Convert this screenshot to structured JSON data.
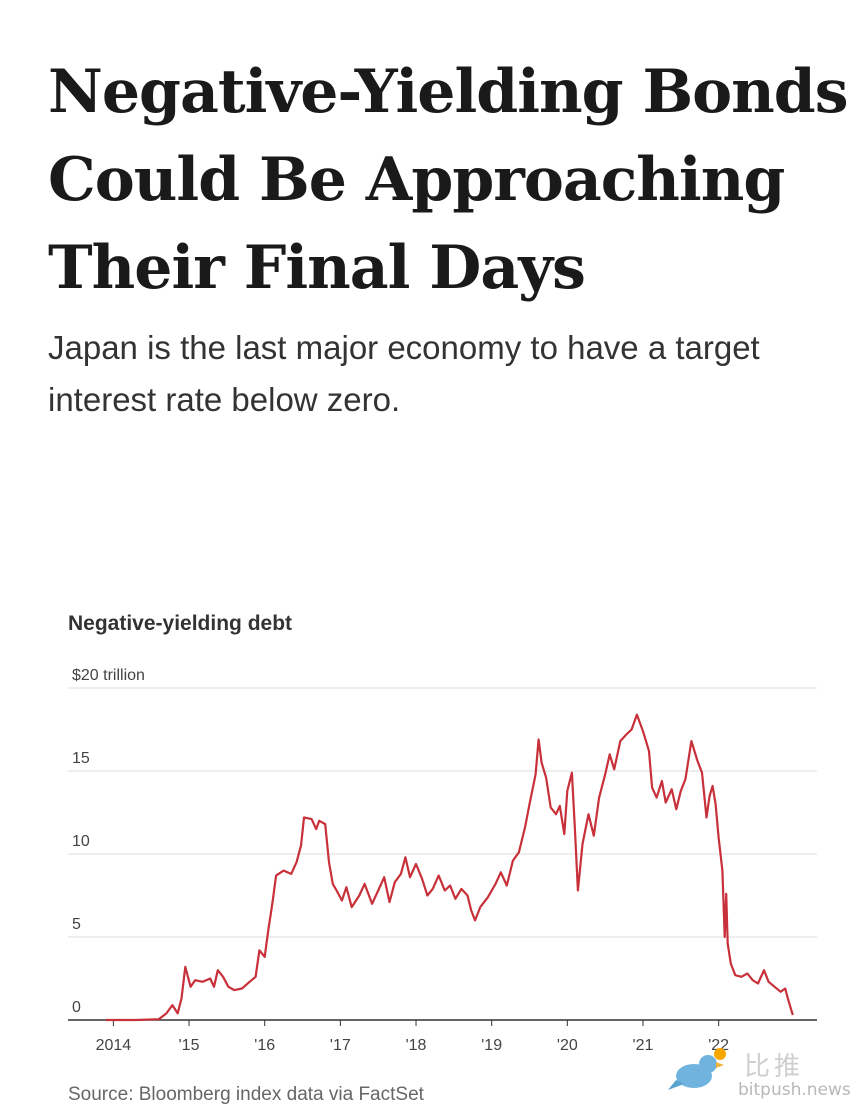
{
  "headline": "Negative-Yielding Bonds Could Be Approaching Their Final Days",
  "dek": "Japan is the last major economy to have a target interest rate below zero.",
  "source": "Source: Bloomberg index data via FactSet",
  "watermark": {
    "cn": "比推",
    "site": "bitpush.news"
  },
  "chart_data": {
    "type": "line",
    "title": "Negative-yielding debt",
    "ylabel": "",
    "y_ticks": [
      {
        "value": 0,
        "label": "0"
      },
      {
        "value": 5,
        "label": "5"
      },
      {
        "value": 10,
        "label": "10"
      },
      {
        "value": 15,
        "label": "15"
      },
      {
        "value": 20,
        "label": "$20 trillion"
      }
    ],
    "x_ticks": [
      {
        "value": 2014,
        "label": "2014"
      },
      {
        "value": 2015,
        "label": "'15"
      },
      {
        "value": 2016,
        "label": "'16"
      },
      {
        "value": 2017,
        "label": "'17"
      },
      {
        "value": 2018,
        "label": "'18"
      },
      {
        "value": 2019,
        "label": "'19"
      },
      {
        "value": 2020,
        "label": "'20"
      },
      {
        "value": 2021,
        "label": "'21"
      },
      {
        "value": 2022,
        "label": "'22"
      }
    ],
    "xlim": [
      2013.4,
      2023.3
    ],
    "ylim": [
      0,
      20
    ],
    "grid": true,
    "color": "#c8303a",
    "series": [
      {
        "name": "",
        "points": [
          [
            2013.9,
            0
          ],
          [
            2014.3,
            0
          ],
          [
            2014.6,
            0.05
          ],
          [
            2014.7,
            0.4
          ],
          [
            2014.78,
            0.9
          ],
          [
            2014.85,
            0.4
          ],
          [
            2014.9,
            1.3
          ],
          [
            2014.95,
            3.2
          ],
          [
            2015.02,
            2.0
          ],
          [
            2015.08,
            2.4
          ],
          [
            2015.18,
            2.3
          ],
          [
            2015.28,
            2.5
          ],
          [
            2015.33,
            2.0
          ],
          [
            2015.38,
            3.0
          ],
          [
            2015.45,
            2.6
          ],
          [
            2015.52,
            2.0
          ],
          [
            2015.6,
            1.8
          ],
          [
            2015.7,
            1.9
          ],
          [
            2015.8,
            2.3
          ],
          [
            2015.88,
            2.6
          ],
          [
            2015.93,
            4.2
          ],
          [
            2016.0,
            3.8
          ],
          [
            2016.05,
            5.5
          ],
          [
            2016.1,
            7.0
          ],
          [
            2016.15,
            8.7
          ],
          [
            2016.25,
            9.0
          ],
          [
            2016.35,
            8.8
          ],
          [
            2016.42,
            9.5
          ],
          [
            2016.48,
            10.5
          ],
          [
            2016.52,
            12.2
          ],
          [
            2016.62,
            12.1
          ],
          [
            2016.68,
            11.5
          ],
          [
            2016.72,
            12.0
          ],
          [
            2016.8,
            11.8
          ],
          [
            2016.85,
            9.5
          ],
          [
            2016.9,
            8.2
          ],
          [
            2016.95,
            7.8
          ],
          [
            2017.02,
            7.2
          ],
          [
            2017.08,
            8.0
          ],
          [
            2017.15,
            6.8
          ],
          [
            2017.25,
            7.5
          ],
          [
            2017.32,
            8.2
          ],
          [
            2017.42,
            7.0
          ],
          [
            2017.5,
            7.8
          ],
          [
            2017.58,
            8.6
          ],
          [
            2017.65,
            7.1
          ],
          [
            2017.72,
            8.3
          ],
          [
            2017.8,
            8.8
          ],
          [
            2017.86,
            9.8
          ],
          [
            2017.92,
            8.6
          ],
          [
            2018.0,
            9.4
          ],
          [
            2018.08,
            8.5
          ],
          [
            2018.15,
            7.5
          ],
          [
            2018.22,
            7.9
          ],
          [
            2018.3,
            8.7
          ],
          [
            2018.38,
            7.8
          ],
          [
            2018.45,
            8.1
          ],
          [
            2018.52,
            7.3
          ],
          [
            2018.6,
            7.9
          ],
          [
            2018.68,
            7.5
          ],
          [
            2018.73,
            6.6
          ],
          [
            2018.78,
            6.0
          ],
          [
            2018.85,
            6.8
          ],
          [
            2018.95,
            7.4
          ],
          [
            2019.05,
            8.2
          ],
          [
            2019.12,
            8.9
          ],
          [
            2019.2,
            8.1
          ],
          [
            2019.28,
            9.6
          ],
          [
            2019.36,
            10.1
          ],
          [
            2019.44,
            11.6
          ],
          [
            2019.5,
            13.0
          ],
          [
            2019.58,
            14.8
          ],
          [
            2019.62,
            16.9
          ],
          [
            2019.66,
            15.5
          ],
          [
            2019.72,
            14.6
          ],
          [
            2019.78,
            12.8
          ],
          [
            2019.85,
            12.4
          ],
          [
            2019.9,
            12.9
          ],
          [
            2019.96,
            11.2
          ],
          [
            2020.0,
            13.8
          ],
          [
            2020.06,
            14.9
          ],
          [
            2020.1,
            11.5
          ],
          [
            2020.14,
            7.8
          ],
          [
            2020.2,
            10.6
          ],
          [
            2020.28,
            12.4
          ],
          [
            2020.35,
            11.1
          ],
          [
            2020.42,
            13.4
          ],
          [
            2020.5,
            14.8
          ],
          [
            2020.56,
            16.0
          ],
          [
            2020.62,
            15.1
          ],
          [
            2020.7,
            16.8
          ],
          [
            2020.78,
            17.2
          ],
          [
            2020.85,
            17.5
          ],
          [
            2020.92,
            18.4
          ],
          [
            2021.0,
            17.4
          ],
          [
            2021.08,
            16.2
          ],
          [
            2021.12,
            14.0
          ],
          [
            2021.18,
            13.4
          ],
          [
            2021.25,
            14.4
          ],
          [
            2021.3,
            13.1
          ],
          [
            2021.38,
            13.9
          ],
          [
            2021.44,
            12.7
          ],
          [
            2021.5,
            13.8
          ],
          [
            2021.56,
            14.5
          ],
          [
            2021.64,
            16.8
          ],
          [
            2021.72,
            15.6
          ],
          [
            2021.78,
            14.9
          ],
          [
            2021.84,
            12.2
          ],
          [
            2021.88,
            13.5
          ],
          [
            2021.92,
            14.1
          ],
          [
            2021.96,
            13.0
          ],
          [
            2022.0,
            11.0
          ],
          [
            2022.05,
            9.0
          ],
          [
            2022.08,
            5.0
          ],
          [
            2022.1,
            7.6
          ],
          [
            2022.12,
            4.6
          ],
          [
            2022.16,
            3.4
          ],
          [
            2022.22,
            2.7
          ],
          [
            2022.3,
            2.6
          ],
          [
            2022.38,
            2.8
          ],
          [
            2022.45,
            2.4
          ],
          [
            2022.52,
            2.2
          ],
          [
            2022.6,
            3.0
          ],
          [
            2022.66,
            2.3
          ],
          [
            2022.74,
            2.0
          ],
          [
            2022.82,
            1.7
          ],
          [
            2022.88,
            1.9
          ],
          [
            2022.92,
            1.2
          ],
          [
            2022.98,
            0.3
          ]
        ]
      }
    ]
  }
}
